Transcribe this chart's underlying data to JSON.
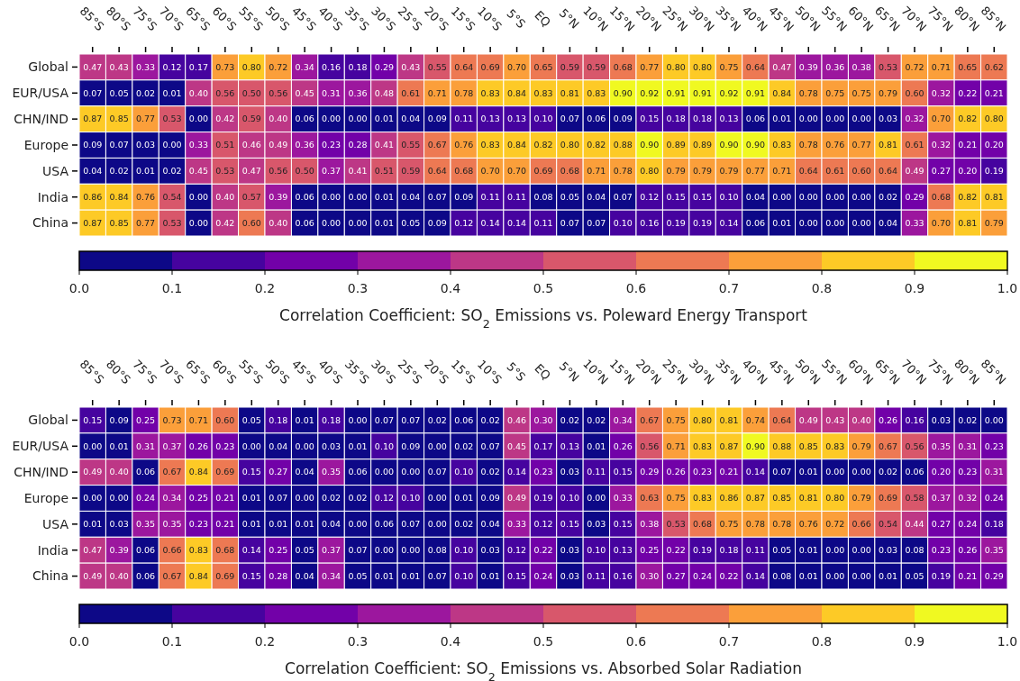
{
  "chart_data": [
    {
      "type": "heatmap",
      "clabel": "Correlation Coefficient: SO$_{2}$ Emissions vs. Poleward Energy Transport",
      "categories": [
        "85°S",
        "80°S",
        "75°S",
        "70°S",
        "65°S",
        "60°S",
        "55°S",
        "50°S",
        "45°S",
        "40°S",
        "35°S",
        "30°S",
        "25°S",
        "20°S",
        "15°S",
        "10°S",
        "5°S",
        "EQ",
        "5°N",
        "10°N",
        "15°N",
        "20°N",
        "25°N",
        "30°N",
        "35°N",
        "40°N",
        "45°N",
        "50°N",
        "55°N",
        "60°N",
        "65°N",
        "70°N",
        "75°N",
        "80°N",
        "85°N"
      ],
      "y_categories": [
        "Global",
        "EUR/USA",
        "CHN/IND",
        "Europe",
        "USA",
        "India",
        "China"
      ],
      "cells": [
        [
          0.47,
          0.43,
          0.33,
          0.12,
          0.17,
          0.73,
          0.8,
          0.72,
          0.34,
          0.16,
          0.18,
          0.29,
          0.43,
          0.55,
          0.64,
          0.69,
          0.7,
          0.65,
          0.59,
          0.59,
          0.68,
          0.77,
          0.8,
          0.8,
          0.75,
          0.64,
          0.47,
          0.39,
          0.36,
          0.38,
          0.53,
          0.72,
          0.71,
          0.65,
          0.62
        ],
        [
          0.07,
          0.05,
          0.02,
          0.01,
          0.4,
          0.56,
          0.5,
          0.56,
          0.45,
          0.31,
          0.36,
          0.48,
          0.61,
          0.71,
          0.78,
          0.83,
          0.84,
          0.83,
          0.81,
          0.83,
          0.9,
          0.92,
          0.91,
          0.91,
          0.92,
          0.91,
          0.84,
          0.78,
          0.75,
          0.75,
          0.79,
          0.6,
          0.32,
          0.22,
          0.21
        ],
        [
          0.87,
          0.85,
          0.77,
          0.53,
          0.0,
          0.42,
          0.59,
          0.4,
          0.06,
          0.0,
          0.0,
          0.01,
          0.04,
          0.09,
          0.11,
          0.13,
          0.13,
          0.1,
          0.07,
          0.06,
          0.09,
          0.15,
          0.18,
          0.18,
          0.13,
          0.06,
          0.01,
          0.0,
          0.0,
          0.0,
          0.03,
          0.32,
          0.7,
          0.82,
          0.8
        ],
        [
          0.09,
          0.07,
          0.03,
          0.0,
          0.33,
          0.51,
          0.46,
          0.49,
          0.36,
          0.23,
          0.28,
          0.41,
          0.55,
          0.67,
          0.76,
          0.83,
          0.84,
          0.82,
          0.8,
          0.82,
          0.88,
          0.9,
          0.89,
          0.89,
          0.9,
          0.9,
          0.83,
          0.78,
          0.76,
          0.77,
          0.81,
          0.61,
          0.32,
          0.21,
          0.2
        ],
        [
          0.04,
          0.02,
          0.01,
          0.02,
          0.45,
          0.53,
          0.47,
          0.56,
          0.5,
          0.37,
          0.41,
          0.51,
          0.59,
          0.64,
          0.68,
          0.7,
          0.7,
          0.69,
          0.68,
          0.71,
          0.78,
          0.8,
          0.79,
          0.79,
          0.79,
          0.77,
          0.71,
          0.64,
          0.61,
          0.6,
          0.64,
          0.49,
          0.27,
          0.2,
          0.19
        ],
        [
          0.86,
          0.84,
          0.76,
          0.54,
          0.0,
          0.4,
          0.57,
          0.39,
          0.06,
          0.0,
          0.0,
          0.01,
          0.04,
          0.07,
          0.09,
          0.11,
          0.11,
          0.08,
          0.05,
          0.04,
          0.07,
          0.12,
          0.15,
          0.15,
          0.1,
          0.04,
          0.0,
          0.0,
          0.0,
          0.0,
          0.02,
          0.29,
          0.68,
          0.82,
          0.81
        ],
        [
          0.87,
          0.85,
          0.77,
          0.53,
          0.0,
          0.42,
          0.6,
          0.4,
          0.06,
          0.0,
          0.0,
          0.01,
          0.05,
          0.09,
          0.12,
          0.14,
          0.14,
          0.11,
          0.07,
          0.07,
          0.1,
          0.16,
          0.19,
          0.19,
          0.14,
          0.06,
          0.01,
          0.0,
          0.0,
          0.0,
          0.04,
          0.33,
          0.7,
          0.81,
          0.79
        ]
      ],
      "clim": [
        0,
        1
      ],
      "cticks": [
        {
          "value": 0,
          "label": "0.0"
        },
        {
          "value": 0.1,
          "label": "0.1"
        },
        {
          "value": 0.2,
          "label": "0.2"
        },
        {
          "value": 0.3,
          "label": "0.3"
        },
        {
          "value": 0.4,
          "label": "0.4"
        },
        {
          "value": 0.5,
          "label": "0.5"
        },
        {
          "value": 0.6,
          "label": "0.6"
        },
        {
          "value": 0.7,
          "label": "0.7"
        },
        {
          "value": 0.8,
          "label": "0.8"
        },
        {
          "value": 0.9,
          "label": "0.9"
        },
        {
          "value": 1,
          "label": "1.0"
        }
      ],
      "cell_labels": [
        [
          "0.47",
          "0.43",
          "0.33",
          "0.12",
          "0.17",
          "0.73",
          "0.80",
          "0.72",
          "0.34",
          "0.16",
          "0.18",
          "0.29",
          "0.43",
          "0.55",
          "0.64",
          "0.69",
          "0.70",
          "0.65",
          "0.59",
          "0.59",
          "0.68",
          "0.77",
          "0.80",
          "0.80",
          "0.75",
          "0.64",
          "0.47",
          "0.39",
          "0.36",
          "0.38",
          "0.53",
          "0.72",
          "0.71",
          "0.65",
          "0.62"
        ],
        [
          "0.07",
          "0.05",
          "0.02",
          "0.01",
          "0.40",
          "0.56",
          "0.50",
          "0.56",
          "0.45",
          "0.31",
          "0.36",
          "0.48",
          "0.61",
          "0.71",
          "0.78",
          "0.83",
          "0.84",
          "0.83",
          "0.81",
          "0.83",
          "0.90",
          "0.92",
          "0.91",
          "0.91",
          "0.92",
          "0.91",
          "0.84",
          "0.78",
          "0.75",
          "0.75",
          "0.79",
          "0.60",
          "0.32",
          "0.22",
          "0.21"
        ],
        [
          "0.87",
          "0.85",
          "0.77",
          "0.53",
          "0.00",
          "0.42",
          "0.59",
          "0.40",
          "0.06",
          "0.00",
          "0.00",
          "0.01",
          "0.04",
          "0.09",
          "0.11",
          "0.13",
          "0.13",
          "0.10",
          "0.07",
          "0.06",
          "0.09",
          "0.15",
          "0.18",
          "0.18",
          "0.13",
          "0.06",
          "0.01",
          "0.00",
          "0.00",
          "0.00",
          "0.03",
          "0.32",
          "0.70",
          "0.82",
          "0.80"
        ],
        [
          "0.09",
          "0.07",
          "0.03",
          "0.00",
          "0.33",
          "0.51",
          "0.46",
          "0.49",
          "0.36",
          "0.23",
          "0.28",
          "0.41",
          "0.55",
          "0.67",
          "0.76",
          "0.83",
          "0.84",
          "0.82",
          "0.80",
          "0.82",
          "0.88",
          "0.90",
          "0.89",
          "0.89",
          "0.90",
          "0.90",
          "0.83",
          "0.78",
          "0.76",
          "0.77",
          "0.81",
          "0.61",
          "0.32",
          "0.21",
          "0.20"
        ],
        [
          "0.04",
          "0.02",
          "0.01",
          "0.02",
          "0.45",
          "0.53",
          "0.47",
          "0.56",
          "0.50",
          "0.37",
          "0.41",
          "0.51",
          "0.59",
          "0.64",
          "0.68",
          "0.70",
          "0.70",
          "0.69",
          "0.68",
          "0.71",
          "0.78",
          "0.80",
          "0.79",
          "0.79",
          "0.79",
          "0.77",
          "0.71",
          "0.64",
          "0.61",
          "0.60",
          "0.64",
          "0.49",
          "0.27",
          "0.20",
          "0.19"
        ],
        [
          "0.86",
          "0.84",
          "0.76",
          "0.54",
          "0.00",
          "0.40",
          "0.57",
          "0.39",
          "0.06",
          "0.00",
          "0.00",
          "0.01",
          "0.04",
          "0.07",
          "0.09",
          "0.11",
          "0.11",
          "0.08",
          "0.05",
          "0.04",
          "0.07",
          "0.12",
          "0.15",
          "0.15",
          "0.10",
          "0.04",
          "0.00",
          "0.00",
          "0.00",
          "0.00",
          "0.02",
          "0.29",
          "0.68",
          "0.82",
          "0.81"
        ],
        [
          "0.87",
          "0.85",
          "0.77",
          "0.53",
          "0.00",
          "0.42",
          "0.60",
          "0.40",
          "0.06",
          "0.00",
          "0.00",
          "0.01",
          "0.05",
          "0.09",
          "0.12",
          "0.14",
          "0.14",
          "0.11",
          "0.07",
          "0.07",
          "0.10",
          "0.16",
          "0.19",
          "0.19",
          "0.14",
          "0.06",
          "0.01",
          "0.00",
          "0.00",
          "0.00",
          "0.04",
          "0.33",
          "0.70",
          "0.81",
          "0.79"
        ]
      ]
    },
    {
      "type": "heatmap",
      "clabel": "Correlation Coefficient: SO$_{2}$ Emissions vs. Absorbed Solar Radiation",
      "categories": [
        "85°S",
        "80°S",
        "75°S",
        "70°S",
        "65°S",
        "60°S",
        "55°S",
        "50°S",
        "45°S",
        "40°S",
        "35°S",
        "30°S",
        "25°S",
        "20°S",
        "15°S",
        "10°S",
        "5°S",
        "EQ",
        "5°N",
        "10°N",
        "15°N",
        "20°N",
        "25°N",
        "30°N",
        "35°N",
        "40°N",
        "45°N",
        "50°N",
        "55°N",
        "60°N",
        "65°N",
        "70°N",
        "75°N",
        "80°N",
        "85°N"
      ],
      "y_categories": [
        "Global",
        "EUR/USA",
        "CHN/IND",
        "Europe",
        "USA",
        "India",
        "China"
      ],
      "cells": [
        [
          0.15,
          0.09,
          0.25,
          0.73,
          0.71,
          0.6,
          0.05,
          0.18,
          0.01,
          0.18,
          0.0,
          0.07,
          0.07,
          0.02,
          0.06,
          0.02,
          0.46,
          0.3,
          0.02,
          0.02,
          0.34,
          0.67,
          0.75,
          0.8,
          0.81,
          0.74,
          0.64,
          0.49,
          0.43,
          0.4,
          0.26,
          0.16,
          0.03,
          0.02,
          0.0
        ],
        [
          0.0,
          0.01,
          0.31,
          0.37,
          0.26,
          0.23,
          0.0,
          0.04,
          0.0,
          0.03,
          0.01,
          0.1,
          0.09,
          0.0,
          0.02,
          0.07,
          0.45,
          0.17,
          0.13,
          0.01,
          0.26,
          0.56,
          0.71,
          0.83,
          0.87,
          0.9,
          0.88,
          0.85,
          0.83,
          0.79,
          0.67,
          0.56,
          0.35,
          0.31,
          0.23
        ],
        [
          0.49,
          0.4,
          0.06,
          0.67,
          0.84,
          0.69,
          0.15,
          0.27,
          0.04,
          0.35,
          0.06,
          0.0,
          0.0,
          0.07,
          0.1,
          0.02,
          0.14,
          0.23,
          0.03,
          0.11,
          0.15,
          0.29,
          0.26,
          0.23,
          0.21,
          0.14,
          0.07,
          0.01,
          0.0,
          0.0,
          0.02,
          0.06,
          0.2,
          0.23,
          0.31
        ],
        [
          0.0,
          0.0,
          0.24,
          0.34,
          0.25,
          0.21,
          0.01,
          0.07,
          0.0,
          0.02,
          0.02,
          0.12,
          0.1,
          0.0,
          0.01,
          0.09,
          0.49,
          0.19,
          0.1,
          0.0,
          0.33,
          0.63,
          0.75,
          0.83,
          0.86,
          0.87,
          0.85,
          0.81,
          0.8,
          0.79,
          0.69,
          0.58,
          0.37,
          0.32,
          0.24
        ],
        [
          0.01,
          0.03,
          0.35,
          0.35,
          0.23,
          0.21,
          0.01,
          0.01,
          0.01,
          0.04,
          0.0,
          0.06,
          0.07,
          0.0,
          0.02,
          0.04,
          0.33,
          0.12,
          0.15,
          0.03,
          0.15,
          0.38,
          0.53,
          0.68,
          0.75,
          0.78,
          0.78,
          0.76,
          0.72,
          0.66,
          0.54,
          0.44,
          0.27,
          0.24,
          0.18
        ],
        [
          0.47,
          0.39,
          0.06,
          0.66,
          0.83,
          0.68,
          0.14,
          0.25,
          0.05,
          0.37,
          0.07,
          0.0,
          0.0,
          0.08,
          0.1,
          0.03,
          0.12,
          0.22,
          0.03,
          0.1,
          0.13,
          0.25,
          0.22,
          0.19,
          0.18,
          0.11,
          0.05,
          0.01,
          0.0,
          0.0,
          0.03,
          0.08,
          0.23,
          0.26,
          0.35
        ],
        [
          0.49,
          0.4,
          0.06,
          0.67,
          0.84,
          0.69,
          0.15,
          0.28,
          0.04,
          0.34,
          0.05,
          0.01,
          0.01,
          0.07,
          0.1,
          0.01,
          0.15,
          0.24,
          0.03,
          0.11,
          0.16,
          0.3,
          0.27,
          0.24,
          0.22,
          0.14,
          0.08,
          0.01,
          0.0,
          0.0,
          0.01,
          0.05,
          0.19,
          0.21,
          0.29
        ]
      ],
      "clim": [
        0,
        1
      ],
      "cticks": [
        {
          "value": 0,
          "label": "0.0"
        },
        {
          "value": 0.1,
          "label": "0.1"
        },
        {
          "value": 0.2,
          "label": "0.2"
        },
        {
          "value": 0.3,
          "label": "0.3"
        },
        {
          "value": 0.4,
          "label": "0.4"
        },
        {
          "value": 0.5,
          "label": "0.5"
        },
        {
          "value": 0.6,
          "label": "0.6"
        },
        {
          "value": 0.7,
          "label": "0.7"
        },
        {
          "value": 0.8,
          "label": "0.8"
        },
        {
          "value": 0.9,
          "label": "0.9"
        },
        {
          "value": 1,
          "label": "1.0"
        }
      ],
      "cell_labels": [
        [
          "0.15",
          "0.09",
          "0.25",
          "0.73",
          "0.71",
          "0.60",
          "0.05",
          "0.18",
          "0.01",
          "0.18",
          "0.00",
          "0.07",
          "0.07",
          "0.02",
          "0.06",
          "0.02",
          "0.46",
          "0.30",
          "0.02",
          "0.02",
          "0.34",
          "0.67",
          "0.75",
          "0.80",
          "0.81",
          "0.74",
          "0.64",
          "0.49",
          "0.43",
          "0.40",
          "0.26",
          "0.16",
          "0.03",
          "0.02",
          "0.00"
        ],
        [
          "0.00",
          "0.01",
          "0.31",
          "0.37",
          "0.26",
          "0.23",
          "0.00",
          "0.04",
          "0.00",
          "0.03",
          "0.01",
          "0.10",
          "0.09",
          "0.00",
          "0.02",
          "0.07",
          "0.45",
          "0.17",
          "0.13",
          "0.01",
          "0.26",
          "0.56",
          "0.71",
          "0.83",
          "0.87",
          "0.90",
          "0.88",
          "0.85",
          "0.83",
          "0.79",
          "0.67",
          "0.56",
          "0.35",
          "0.31",
          "0.23"
        ],
        [
          "0.49",
          "0.40",
          "0.06",
          "0.67",
          "0.84",
          "0.69",
          "0.15",
          "0.27",
          "0.04",
          "0.35",
          "0.06",
          "0.00",
          "0.00",
          "0.07",
          "0.10",
          "0.02",
          "0.14",
          "0.23",
          "0.03",
          "0.11",
          "0.15",
          "0.29",
          "0.26",
          "0.23",
          "0.21",
          "0.14",
          "0.07",
          "0.01",
          "0.00",
          "0.00",
          "0.02",
          "0.06",
          "0.20",
          "0.23",
          "0.31"
        ],
        [
          "0.00",
          "0.00",
          "0.24",
          "0.34",
          "0.25",
          "0.21",
          "0.01",
          "0.07",
          "0.00",
          "0.02",
          "0.02",
          "0.12",
          "0.10",
          "0.00",
          "0.01",
          "0.09",
          "0.49",
          "0.19",
          "0.10",
          "0.00",
          "0.33",
          "0.63",
          "0.75",
          "0.83",
          "0.86",
          "0.87",
          "0.85",
          "0.81",
          "0.80",
          "0.79",
          "0.69",
          "0.58",
          "0.37",
          "0.32",
          "0.24"
        ],
        [
          "0.01",
          "0.03",
          "0.35",
          "0.35",
          "0.23",
          "0.21",
          "0.01",
          "0.01",
          "0.01",
          "0.04",
          "0.00",
          "0.06",
          "0.07",
          "0.00",
          "0.02",
          "0.04",
          "0.33",
          "0.12",
          "0.15",
          "0.03",
          "0.15",
          "0.38",
          "0.53",
          "0.68",
          "0.75",
          "0.78",
          "0.78",
          "0.76",
          "0.72",
          "0.66",
          "0.54",
          "0.44",
          "0.27",
          "0.24",
          "0.18"
        ],
        [
          "0.47",
          "0.39",
          "0.06",
          "0.66",
          "0.83",
          "0.68",
          "0.14",
          "0.25",
          "0.05",
          "0.37",
          "0.07",
          "0.00",
          "0.00",
          "0.08",
          "0.10",
          "0.03",
          "0.12",
          "0.22",
          "0.03",
          "0.10",
          "0.13",
          "0.25",
          "0.22",
          "0.19",
          "0.18",
          "0.11",
          "0.05",
          "0.01",
          "0.00",
          "0.00",
          "0.03",
          "0.08",
          "0.23",
          "0.26",
          "0.35"
        ],
        [
          "0.49",
          "0.40",
          "0.06",
          "0.67",
          "0.84",
          "0.69",
          "0.15",
          "0.28",
          "0.04",
          "0.34",
          "0.05",
          "0.01",
          "0.01",
          "0.07",
          "0.10",
          "0.01",
          "0.15",
          "0.24",
          "0.03",
          "0.11",
          "0.16",
          "0.30",
          "0.27",
          "0.24",
          "0.22",
          "0.14",
          "0.08",
          "0.01",
          "0.00",
          "0.00",
          "0.01",
          "0.05",
          "0.19",
          "0.21",
          "0.29"
        ]
      ]
    }
  ]
}
